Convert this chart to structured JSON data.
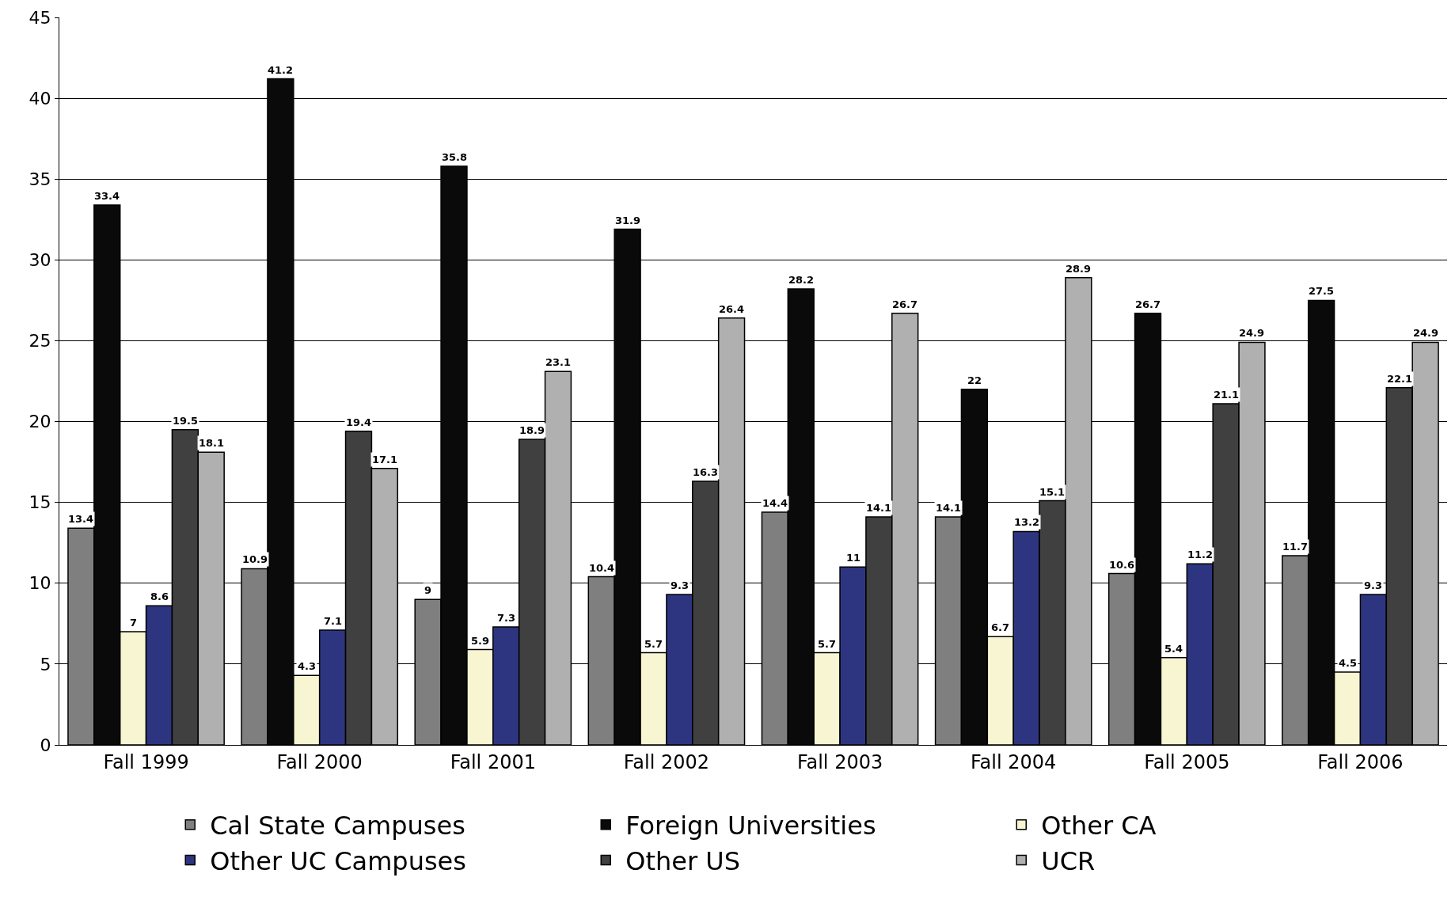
{
  "chart_data": {
    "type": "bar",
    "categories": [
      "Fall 1999",
      "Fall 2000",
      "Fall 2001",
      "Fall 2002",
      "Fall 2003",
      "Fall 2004",
      "Fall 2005",
      "Fall 2006"
    ],
    "series": [
      {
        "name": "Cal State Campuses",
        "color": "#7f7f7f",
        "values": [
          13.4,
          10.9,
          9,
          10.4,
          14.4,
          14.1,
          10.6,
          11.7
        ]
      },
      {
        "name": "Foreign Universities",
        "color": "#0a0a0a",
        "values": [
          33.4,
          41.2,
          35.8,
          31.9,
          28.2,
          22,
          26.7,
          27.5
        ]
      },
      {
        "name": "Other CA",
        "color": "#f8f6d2",
        "values": [
          7,
          4.3,
          5.9,
          5.7,
          5.7,
          6.7,
          5.4,
          4.5
        ]
      },
      {
        "name": "Other UC Campuses",
        "color": "#2e3580",
        "values": [
          8.6,
          7.1,
          7.3,
          9.3,
          11,
          13.2,
          11.2,
          9.3
        ]
      },
      {
        "name": "Other US",
        "color": "#404040",
        "values": [
          19.5,
          19.4,
          18.9,
          16.3,
          14.1,
          15.1,
          21.1,
          22.1
        ]
      },
      {
        "name": "UCR",
        "color": "#b0b0b0",
        "values": [
          18.1,
          17.1,
          23.1,
          26.4,
          26.7,
          28.9,
          24.9,
          24.9
        ]
      }
    ],
    "ylim": [
      0,
      45
    ],
    "yticks": [
      0,
      5,
      10,
      15,
      20,
      25,
      30,
      35,
      40,
      45
    ],
    "grid": "y",
    "legend": "bottom",
    "data_labels": true
  }
}
